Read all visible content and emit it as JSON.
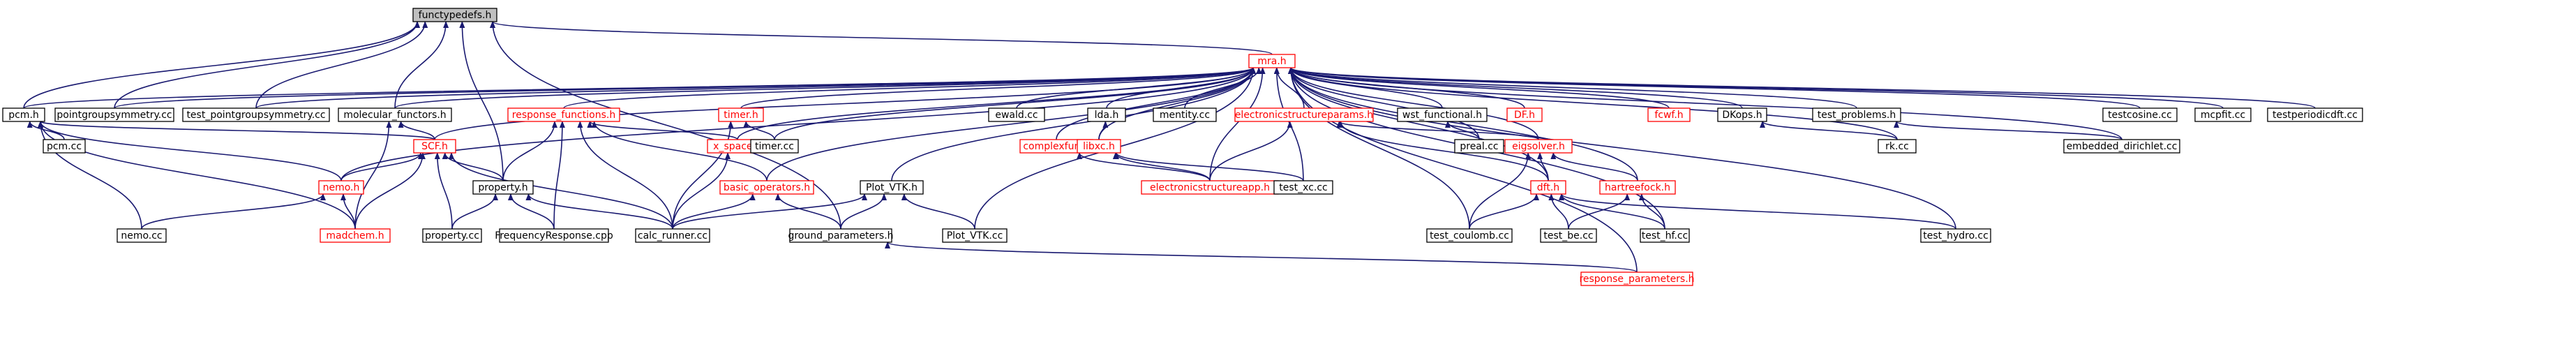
{
  "title": "functypedefs.h",
  "legend": {
    "red_border_meaning": "",
    "edge_color": "#191970",
    "root_fill": "#bfbfbf",
    "red": "#ff0000"
  },
  "nodes": [
    {
      "id": "functypedefs",
      "label": "functypedefs.h",
      "style": "root"
    },
    {
      "id": "mra",
      "label": "mra.h",
      "style": "red"
    },
    {
      "id": "pcm",
      "label": "pcm.h",
      "style": "normal"
    },
    {
      "id": "pointgroupsymmetry",
      "label": "pointgroupsymmetry.cc",
      "style": "normal"
    },
    {
      "id": "test_pointgroupsymmetry",
      "label": "test_pointgroupsymmetry.cc",
      "style": "normal"
    },
    {
      "id": "molecular_functors",
      "label": "molecular_functors.h",
      "style": "normal"
    },
    {
      "id": "response_functions",
      "label": "response_functions.h",
      "style": "red"
    },
    {
      "id": "timer",
      "label": "timer.h",
      "style": "red"
    },
    {
      "id": "ewald",
      "label": "ewald.cc",
      "style": "normal"
    },
    {
      "id": "lda",
      "label": "lda.h",
      "style": "normal"
    },
    {
      "id": "mentity",
      "label": "mentity.cc",
      "style": "normal"
    },
    {
      "id": "electronicstructureparams",
      "label": "electronicstructureparams.h",
      "style": "red"
    },
    {
      "id": "wst_functional",
      "label": "wst_functional.h",
      "style": "normal"
    },
    {
      "id": "DF",
      "label": "DF.h",
      "style": "red"
    },
    {
      "id": "fcwf",
      "label": "fcwf.h",
      "style": "red"
    },
    {
      "id": "DKops",
      "label": "DKops.h",
      "style": "normal"
    },
    {
      "id": "test_problems",
      "label": "test_problems.h",
      "style": "normal"
    },
    {
      "id": "testcosine",
      "label": "testcosine.cc",
      "style": "normal"
    },
    {
      "id": "mcpfit",
      "label": "mcpfit.cc",
      "style": "normal"
    },
    {
      "id": "testperiodicdft",
      "label": "testperiodicdft.cc",
      "style": "normal"
    },
    {
      "id": "pcm_cc",
      "label": "pcm.cc",
      "style": "normal"
    },
    {
      "id": "SCF",
      "label": "SCF.h",
      "style": "red"
    },
    {
      "id": "x_space",
      "label": "x_space.h",
      "style": "red"
    },
    {
      "id": "timer_cc",
      "label": "timer.cc",
      "style": "normal"
    },
    {
      "id": "complexfun",
      "label": "complexfun.h",
      "style": "red"
    },
    {
      "id": "libxc",
      "label": "libxc.h",
      "style": "red"
    },
    {
      "id": "eigsolver",
      "label": "eigsolver.h",
      "style": "red"
    },
    {
      "id": "preal",
      "label": "preal.cc",
      "style": "normal"
    },
    {
      "id": "rk",
      "label": "rk.cc",
      "style": "normal"
    },
    {
      "id": "embedded_dirichlet",
      "label": "embedded_dirichlet.cc",
      "style": "normal"
    },
    {
      "id": "nemo",
      "label": "nemo.h",
      "style": "red"
    },
    {
      "id": "property",
      "label": "property.h",
      "style": "normal"
    },
    {
      "id": "basic_operators",
      "label": "basic_operators.h",
      "style": "red"
    },
    {
      "id": "Plot_VTK_h",
      "label": "Plot_VTK.h",
      "style": "normal"
    },
    {
      "id": "electronicstructureapp",
      "label": "electronicstructureapp.h",
      "style": "red"
    },
    {
      "id": "test_xc",
      "label": "test_xc.cc",
      "style": "normal"
    },
    {
      "id": "dft",
      "label": "dft.h",
      "style": "red"
    },
    {
      "id": "hartreefock",
      "label": "hartreefock.h",
      "style": "red"
    },
    {
      "id": "nemo_cc",
      "label": "nemo.cc",
      "style": "normal"
    },
    {
      "id": "madchem",
      "label": "madchem.h",
      "style": "red"
    },
    {
      "id": "property_cc",
      "label": "property.cc",
      "style": "normal"
    },
    {
      "id": "FrequencyResponse",
      "label": "FrequencyResponse.cpp",
      "style": "normal"
    },
    {
      "id": "calc_runner",
      "label": "calc_runner.cc",
      "style": "normal"
    },
    {
      "id": "ground_parameters",
      "label": "ground_parameters.h",
      "style": "normal"
    },
    {
      "id": "Plot_VTK_cc",
      "label": "Plot_VTK.cc",
      "style": "normal"
    },
    {
      "id": "test_coulomb",
      "label": "test_coulomb.cc",
      "style": "normal"
    },
    {
      "id": "test_be",
      "label": "test_be.cc",
      "style": "normal"
    },
    {
      "id": "test_hf",
      "label": "test_hf.cc",
      "style": "normal"
    },
    {
      "id": "test_hydro",
      "label": "test_hydro.cc",
      "style": "normal"
    },
    {
      "id": "response_parameters",
      "label": "response_parameters.h",
      "style": "red"
    }
  ],
  "edges": [
    [
      "functypedefs",
      "mra"
    ],
    [
      "functypedefs",
      "pcm"
    ],
    [
      "functypedefs",
      "pointgroupsymmetry"
    ],
    [
      "functypedefs",
      "test_pointgroupsymmetry"
    ],
    [
      "functypedefs",
      "molecular_functors"
    ],
    [
      "functypedefs",
      "property"
    ],
    [
      "functypedefs",
      "ground_parameters"
    ],
    [
      "mra",
      "pcm"
    ],
    [
      "mra",
      "pointgroupsymmetry"
    ],
    [
      "mra",
      "test_pointgroupsymmetry"
    ],
    [
      "mra",
      "molecular_functors"
    ],
    [
      "mra",
      "response_functions"
    ],
    [
      "mra",
      "timer"
    ],
    [
      "mra",
      "ewald"
    ],
    [
      "mra",
      "lda"
    ],
    [
      "mra",
      "mentity"
    ],
    [
      "mra",
      "electronicstructureparams"
    ],
    [
      "mra",
      "wst_functional"
    ],
    [
      "mra",
      "DF"
    ],
    [
      "mra",
      "fcwf"
    ],
    [
      "mra",
      "DKops"
    ],
    [
      "mra",
      "test_problems"
    ],
    [
      "mra",
      "testcosine"
    ],
    [
      "mra",
      "mcpfit"
    ],
    [
      "mra",
      "testperiodicdft"
    ],
    [
      "mra",
      "SCF"
    ],
    [
      "mra",
      "x_space"
    ],
    [
      "mra",
      "timer_cc"
    ],
    [
      "mra",
      "complexfun"
    ],
    [
      "mra",
      "libxc"
    ],
    [
      "mra",
      "eigsolver"
    ],
    [
      "mra",
      "preal"
    ],
    [
      "mra",
      "rk"
    ],
    [
      "mra",
      "embedded_dirichlet"
    ],
    [
      "mra",
      "nemo"
    ],
    [
      "mra",
      "basic_operators"
    ],
    [
      "mra",
      "Plot_VTK_h"
    ],
    [
      "mra",
      "Plot_VTK_cc"
    ],
    [
      "mra",
      "electronicstructureapp"
    ],
    [
      "mra",
      "test_xc"
    ],
    [
      "mra",
      "dft"
    ],
    [
      "mra",
      "hartreefock"
    ],
    [
      "mra",
      "test_coulomb"
    ],
    [
      "mra",
      "test_hf"
    ],
    [
      "mra",
      "test_hydro"
    ],
    [
      "mra",
      "response_parameters"
    ],
    [
      "pcm",
      "pcm_cc"
    ],
    [
      "pcm",
      "SCF"
    ],
    [
      "pcm",
      "nemo"
    ],
    [
      "pcm",
      "nemo_cc"
    ],
    [
      "pcm",
      "madchem"
    ],
    [
      "molecular_functors",
      "SCF"
    ],
    [
      "molecular_functors",
      "madchem"
    ],
    [
      "response_functions",
      "property"
    ],
    [
      "response_functions",
      "x_space"
    ],
    [
      "response_functions",
      "basic_operators"
    ],
    [
      "response_functions",
      "FrequencyResponse"
    ],
    [
      "response_functions",
      "calc_runner"
    ],
    [
      "timer",
      "timer_cc"
    ],
    [
      "timer",
      "calc_runner"
    ],
    [
      "lda",
      "libxc"
    ],
    [
      "electronicstructureparams",
      "eigsolver"
    ],
    [
      "electronicstructureparams",
      "electronicstructureapp"
    ],
    [
      "electronicstructureparams",
      "dft"
    ],
    [
      "wst_functional",
      "preal"
    ],
    [
      "DKops",
      "rk"
    ],
    [
      "test_problems",
      "embedded_dirichlet"
    ],
    [
      "SCF",
      "nemo"
    ],
    [
      "SCF",
      "property"
    ],
    [
      "SCF",
      "madchem"
    ],
    [
      "SCF",
      "property_cc"
    ],
    [
      "SCF",
      "calc_runner"
    ],
    [
      "x_space",
      "calc_runner"
    ],
    [
      "complexfun",
      "electronicstructureapp"
    ],
    [
      "libxc",
      "electronicstructureapp"
    ],
    [
      "libxc",
      "test_xc"
    ],
    [
      "eigsolver",
      "dft"
    ],
    [
      "eigsolver",
      "hartreefock"
    ],
    [
      "eigsolver",
      "test_coulomb"
    ],
    [
      "nemo",
      "nemo_cc"
    ],
    [
      "nemo",
      "madchem"
    ],
    [
      "property",
      "property_cc"
    ],
    [
      "property",
      "FrequencyResponse"
    ],
    [
      "property",
      "calc_runner"
    ],
    [
      "basic_operators",
      "calc_runner"
    ],
    [
      "basic_operators",
      "ground_parameters"
    ],
    [
      "Plot_VTK_h",
      "calc_runner"
    ],
    [
      "Plot_VTK_h",
      "ground_parameters"
    ],
    [
      "Plot_VTK_h",
      "Plot_VTK_cc"
    ],
    [
      "dft",
      "test_coulomb"
    ],
    [
      "dft",
      "test_be"
    ],
    [
      "dft",
      "test_hf"
    ],
    [
      "dft",
      "test_hydro"
    ],
    [
      "hartreefock",
      "test_be"
    ],
    [
      "hartreefock",
      "test_hf"
    ],
    [
      "ground_parameters",
      "response_parameters"
    ]
  ]
}
